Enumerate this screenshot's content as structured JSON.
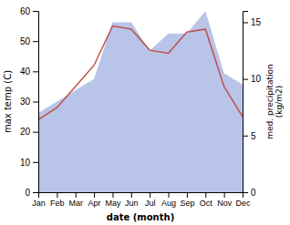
{
  "chart_data": {
    "type": "line",
    "categories": [
      "Jan",
      "Feb",
      "Mar",
      "Apr",
      "May",
      "Jun",
      "Jul",
      "Aug",
      "Sep",
      "Oct",
      "Nov",
      "Dec"
    ],
    "series": [
      {
        "type": "area",
        "axis": "y2",
        "color": "#b8c4e8",
        "values": [
          7.0,
          8.0,
          9.0,
          10.0,
          15.0,
          15.0,
          12.5,
          14.0,
          14.0,
          16.0,
          10.5,
          9.5
        ]
      },
      {
        "type": "line",
        "color": "#c0504d",
        "values": [
          24,
          28,
          35,
          42,
          55,
          54,
          47,
          46,
          53,
          54,
          35,
          25
        ]
      }
    ],
    "xlabel": "date (month)",
    "ylabel": "max temp (C)",
    "y2label": "med. precipitation\n(kg/m2)",
    "ylim": [
      0,
      60
    ],
    "yticks": [
      0,
      10,
      20,
      30,
      40,
      50,
      60
    ],
    "y2lim": [
      0,
      16
    ],
    "y2ticks": [
      0,
      5,
      10,
      15
    ],
    "grid": false
  }
}
